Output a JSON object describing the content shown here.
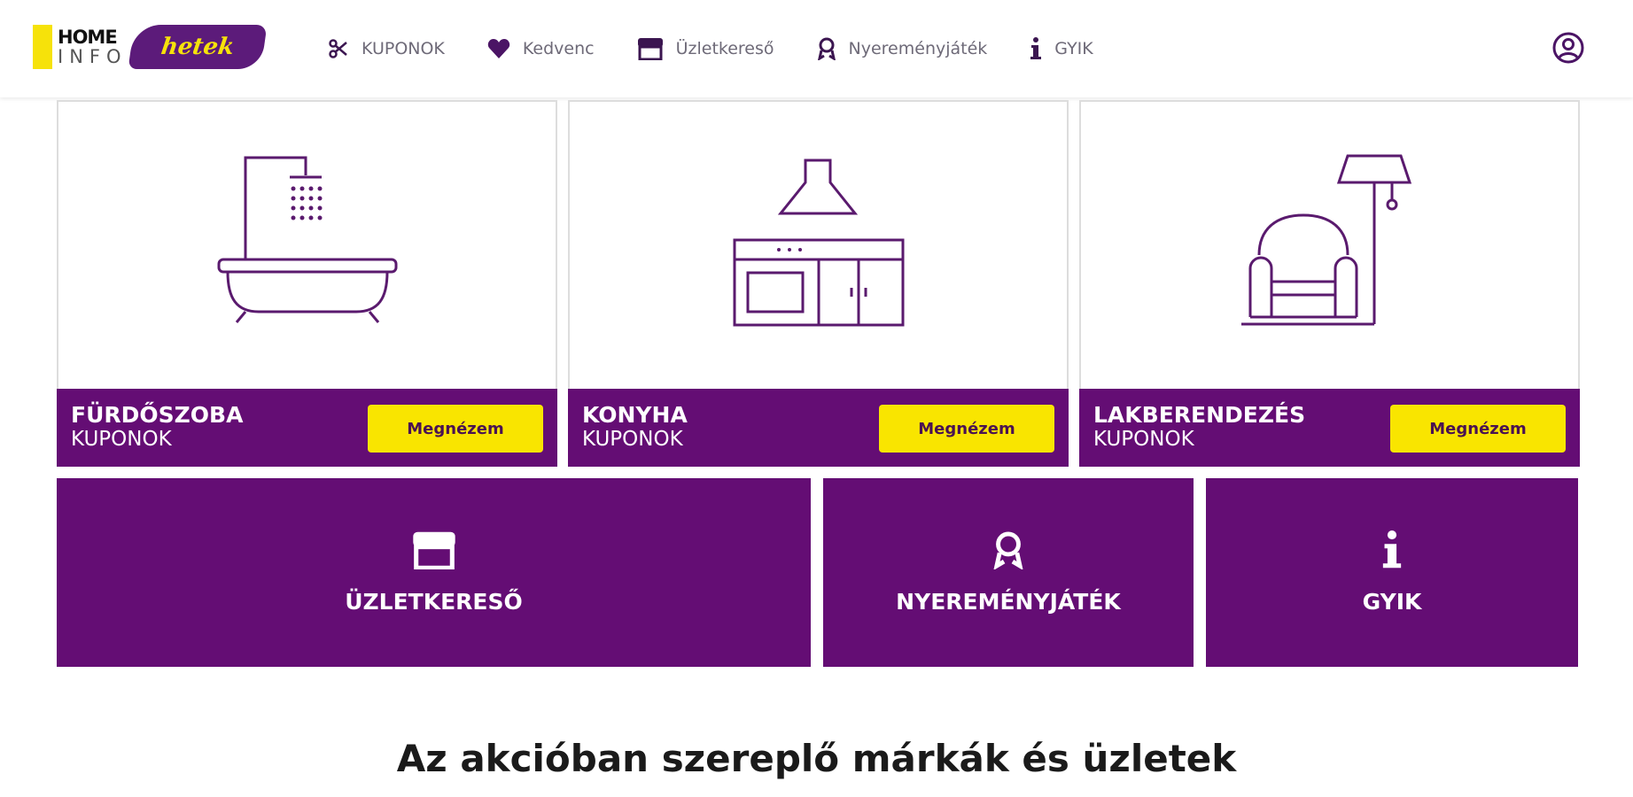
{
  "header": {
    "logo": {
      "home": "HOME",
      "info": "INFO",
      "brand": "hetek"
    },
    "nav": [
      {
        "label": "KUPONOK",
        "icon": "scissors-icon"
      },
      {
        "label": "Kedvenc",
        "icon": "heart-icon"
      },
      {
        "label": "Üzletkereső",
        "icon": "store-icon"
      },
      {
        "label": "Nyereményjáték",
        "icon": "award-icon"
      },
      {
        "label": "GYIK",
        "icon": "info-icon"
      }
    ],
    "user_icon": "user-circle-icon"
  },
  "cards": [
    {
      "title": "FÜRDŐSZOBA",
      "subtitle": "KUPONOK",
      "button": "Megnézem",
      "icon": "bathtub-icon"
    },
    {
      "title": "KONYHA",
      "subtitle": "KUPONOK",
      "button": "Megnézem",
      "icon": "kitchen-icon"
    },
    {
      "title": "LAKBERENDEZÉS",
      "subtitle": "KUPONOK",
      "button": "Megnézem",
      "icon": "armchair-lamp-icon"
    }
  ],
  "tiles": [
    {
      "label": "ÜZLETKERESŐ",
      "icon": "store-icon"
    },
    {
      "label": "NYEREMÉNYJÁTÉK",
      "icon": "award-icon"
    },
    {
      "label": "GYIK",
      "icon": "info-icon"
    }
  ],
  "heading": "Az akcióban szereplő márkák és üzletek",
  "colors": {
    "purple": "#640d74",
    "yellow": "#f9e500"
  }
}
